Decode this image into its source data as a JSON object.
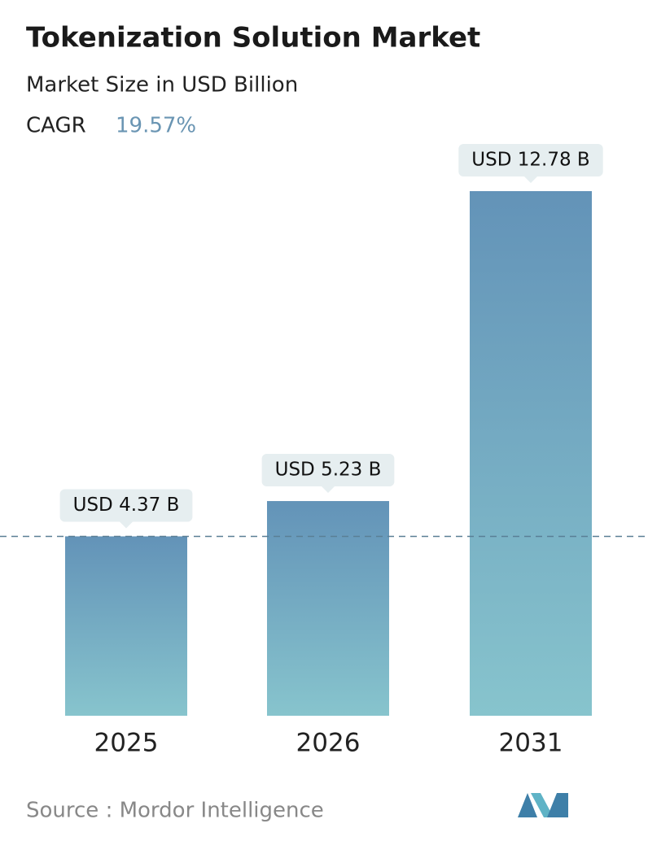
{
  "chart_data": {
    "type": "bar",
    "title": "Tokenization Solution Market",
    "subtitle": "Market Size in USD Billion",
    "cagr_label": "CAGR",
    "cagr_value": "19.57%",
    "categories": [
      "2025",
      "2026",
      "2031"
    ],
    "values": [
      4.37,
      5.23,
      12.78
    ],
    "value_labels": [
      "USD 4.37 B",
      "USD 5.23 B",
      "USD 12.78 B"
    ],
    "color": [
      "#6393b8",
      "#87c4cd"
    ],
    "source": "Source :  Mordor Intelligence"
  }
}
